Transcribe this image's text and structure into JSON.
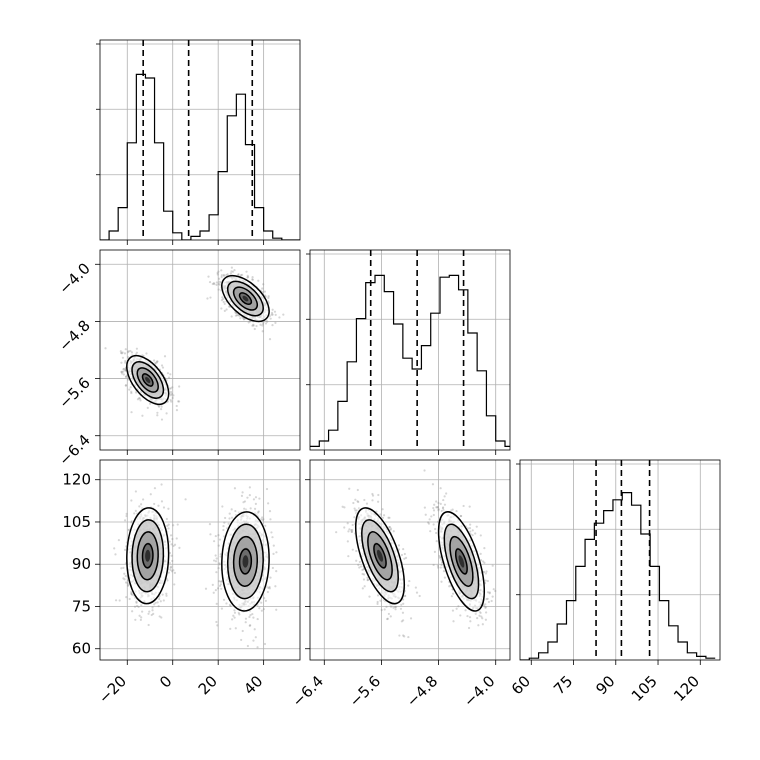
{
  "chart_data": {
    "type": "corner",
    "title": "",
    "parameters": [
      {
        "name": "",
        "range": [
          -32,
          56
        ],
        "ticks": [
          -20,
          0,
          20,
          40
        ],
        "tick_labels": [
          "−20",
          "0",
          "20",
          "40"
        ],
        "quantiles": [
          -13,
          7,
          35
        ]
      },
      {
        "name": "",
        "range": [
          -6.6,
          -3.8
        ],
        "ticks": [
          -6.4,
          -5.6,
          -4.8,
          -4.0
        ],
        "tick_labels": [
          "−6.4",
          "−5.6",
          "−4.8",
          "−4.0"
        ],
        "quantiles": [
          -5.75,
          -5.1,
          -4.45
        ]
      },
      {
        "name": "",
        "range": [
          56,
          127
        ],
        "ticks": [
          60,
          75,
          90,
          105,
          120
        ],
        "tick_labels": [
          "60",
          "75",
          "90",
          "105",
          "120"
        ],
        "quantiles": [
          83,
          92,
          102
        ]
      }
    ],
    "histograms": [
      {
        "param": 0,
        "bin_edges": [
          -32,
          -28,
          -24,
          -20,
          -16,
          -12,
          -8,
          -4,
          0,
          4,
          8,
          12,
          16,
          20,
          24,
          28,
          32,
          36,
          40,
          44,
          48,
          52,
          56
        ],
        "counts": [
          0.0,
          0.05,
          0.18,
          0.54,
          0.92,
          0.9,
          0.54,
          0.16,
          0.04,
          0.0,
          0.02,
          0.05,
          0.14,
          0.38,
          0.69,
          0.81,
          0.53,
          0.18,
          0.05,
          0.01,
          0,
          0
        ]
      },
      {
        "param": 1,
        "bin_edges": [
          -6.6,
          -6.47,
          -6.34,
          -6.21,
          -6.08,
          -5.95,
          -5.82,
          -5.69,
          -5.56,
          -5.43,
          -5.3,
          -5.17,
          -5.04,
          -4.91,
          -4.78,
          -4.65,
          -4.52,
          -4.39,
          -4.26,
          -4.13,
          -4.0,
          -3.87,
          -3.74
        ],
        "counts": [
          0.02,
          0.05,
          0.11,
          0.27,
          0.49,
          0.73,
          0.93,
          0.97,
          0.88,
          0.7,
          0.51,
          0.45,
          0.58,
          0.76,
          0.96,
          0.97,
          0.89,
          0.65,
          0.44,
          0.19,
          0.05,
          0.02
        ]
      },
      {
        "param": 2,
        "bin_edges": [
          56,
          59.3,
          62.6,
          65.9,
          69.2,
          72.5,
          75.8,
          79.1,
          82.4,
          85.7,
          89,
          92.3,
          95.6,
          98.9,
          102.2,
          105.5,
          108.8,
          112.1,
          115.4,
          118.7,
          122,
          125.3
        ],
        "counts": [
          0.0,
          0.01,
          0.04,
          0.1,
          0.2,
          0.33,
          0.52,
          0.67,
          0.76,
          0.83,
          0.89,
          0.93,
          0.86,
          0.7,
          0.52,
          0.33,
          0.19,
          0.1,
          0.04,
          0.02,
          0.01
        ]
      }
    ],
    "clusters": [
      {
        "center": [
          -11,
          -5.62,
          93
        ],
        "sigma": [
          4.6,
          0.17,
          8.5
        ]
      },
      {
        "center": [
          32,
          -4.48,
          91
        ],
        "sigma": [
          5.2,
          0.16,
          8.8
        ]
      }
    ],
    "correlations": {
      "0-1": -0.55,
      "0-2": 0.05,
      "1-2": -0.6
    },
    "contour_levels": [
      0.5,
      1.0,
      1.5,
      2.0
    ],
    "grid": true,
    "legend": "none"
  }
}
